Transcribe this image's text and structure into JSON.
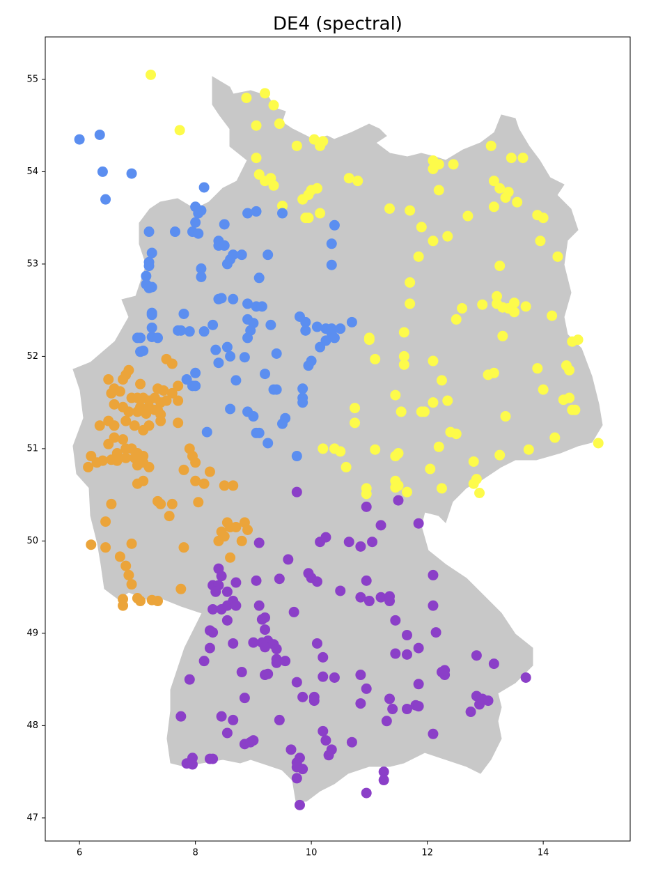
{
  "chart_data": {
    "type": "scatter",
    "title": "DE4 (spectral)",
    "xlim": [
      5.41,
      15.5
    ],
    "ylim": [
      46.75,
      55.46
    ],
    "xticks": [
      6,
      8,
      10,
      12,
      14
    ],
    "yticks": [
      47,
      48,
      49,
      50,
      51,
      52,
      53,
      54,
      55
    ],
    "series": [
      {
        "color": "#fdfb4a",
        "x": [
          7.23,
          7.73,
          8.88,
          9.2,
          9.35,
          9.05,
          9.45,
          9.75,
          10.05,
          10.15,
          10.2,
          9.05,
          9.1,
          9.2,
          9.3,
          9.35,
          9.5,
          9.85,
          9.95,
          10.0,
          10.1,
          9.9,
          9.95,
          10.15,
          10.65,
          10.8,
          11.35,
          11.7,
          11.9,
          12.1,
          12.2,
          12.1,
          12.45,
          12.2,
          12.35,
          12.1,
          12.7,
          13.1,
          13.45,
          13.65,
          13.15,
          13.25,
          13.35,
          13.4,
          13.55,
          13.15,
          13.9,
          14.0,
          13.95,
          14.25,
          11.85,
          13.25,
          11.7,
          11.7,
          12.6,
          12.95,
          13.2,
          13.2,
          13.3,
          13.4,
          13.5,
          13.5,
          13.7,
          12.5,
          14.15,
          13.3,
          11.0,
          11.0,
          11.6,
          11.6,
          11.6,
          11.1,
          12.1,
          12.25,
          11.45,
          11.55,
          11.9,
          11.95,
          12.1,
          12.35,
          12.4,
          12.5,
          13.35,
          13.05,
          13.15,
          13.9,
          14.0,
          14.4,
          14.45,
          14.35,
          14.45,
          14.5,
          14.55,
          14.5,
          14.6,
          14.2,
          14.95,
          13.75,
          13.25,
          12.8,
          12.2,
          12.05,
          12.25,
          12.8,
          12.85,
          12.9,
          11.45,
          11.5,
          11.45,
          11.45,
          11.5,
          11.65,
          11.1,
          10.95,
          10.95,
          10.6,
          10.4,
          10.5,
          10.2,
          10.75,
          10.75
        ],
        "y": [
          55.05,
          54.45,
          54.8,
          54.85,
          54.72,
          54.5,
          54.52,
          54.28,
          54.35,
          54.28,
          54.33,
          54.15,
          53.97,
          53.9,
          53.93,
          53.85,
          53.63,
          53.7,
          53.75,
          53.8,
          53.82,
          53.5,
          53.5,
          53.55,
          53.93,
          53.9,
          53.6,
          53.58,
          53.4,
          54.12,
          54.08,
          54.03,
          54.08,
          53.8,
          53.3,
          53.25,
          53.52,
          54.28,
          54.15,
          54.15,
          53.9,
          53.82,
          53.72,
          53.78,
          53.67,
          53.62,
          53.53,
          53.5,
          53.25,
          53.08,
          53.08,
          52.98,
          52.8,
          52.57,
          52.52,
          52.56,
          52.65,
          52.57,
          52.53,
          52.52,
          52.58,
          52.48,
          52.54,
          52.4,
          52.44,
          52.22,
          52.2,
          52.18,
          52.26,
          52.0,
          51.91,
          51.97,
          51.95,
          51.74,
          51.58,
          51.4,
          51.4,
          51.4,
          51.5,
          51.52,
          51.18,
          51.16,
          51.35,
          51.8,
          51.82,
          51.87,
          51.64,
          51.9,
          51.85,
          51.53,
          51.55,
          51.42,
          51.42,
          52.16,
          52.18,
          51.12,
          51.06,
          50.99,
          50.93,
          50.86,
          51.02,
          50.78,
          50.57,
          50.62,
          50.67,
          50.52,
          50.92,
          50.95,
          50.65,
          50.58,
          50.6,
          50.53,
          50.99,
          50.57,
          50.51,
          50.8,
          51.0,
          50.97,
          51.0,
          51.44,
          51.28
        ]
      },
      {
        "color": "#5b8ef0",
        "x": [
          6.0,
          6.35,
          6.4,
          6.9,
          6.45,
          8.15,
          8.0,
          8.1,
          8.05,
          8.0,
          7.95,
          8.05,
          7.65,
          7.2,
          7.25,
          7.2,
          7.2,
          7.15,
          7.15,
          7.2,
          7.25,
          8.1,
          8.1,
          8.4,
          8.4,
          8.5,
          8.5,
          8.55,
          8.6,
          8.65,
          8.8,
          8.9,
          9.05,
          9.25,
          9.5,
          9.1,
          10.4,
          10.35,
          10.35,
          8.4,
          8.45,
          8.65,
          8.9,
          9.05,
          9.15,
          7.25,
          7.25,
          7.8,
          7.25,
          7.7,
          7.75,
          7.9,
          8.15,
          8.3,
          8.9,
          9.0,
          9.3,
          8.95,
          8.9,
          9.8,
          9.9,
          9.9,
          10.1,
          10.25,
          10.35,
          10.5,
          10.35,
          10.4,
          10.25,
          10.15,
          10.7,
          7.0,
          7.05,
          7.25,
          7.35,
          7.05,
          7.1,
          8.35,
          8.55,
          8.6,
          8.85,
          8.4,
          9.4,
          10.0,
          9.95,
          7.85,
          8.0,
          7.95,
          8.0,
          8.7,
          9.2,
          9.35,
          9.4,
          9.85,
          9.85,
          9.85,
          8.6,
          8.9,
          9.0,
          9.55,
          9.5,
          8.2,
          9.05,
          9.1,
          9.25,
          9.75
        ],
        "y": [
          54.35,
          54.4,
          54.0,
          53.98,
          53.7,
          53.83,
          53.62,
          53.58,
          53.55,
          53.45,
          53.35,
          53.33,
          53.35,
          53.35,
          53.12,
          53.02,
          52.98,
          52.87,
          52.78,
          52.74,
          52.75,
          52.95,
          52.86,
          53.25,
          53.2,
          53.2,
          53.43,
          53.0,
          53.05,
          53.1,
          53.1,
          53.55,
          53.57,
          53.1,
          53.55,
          52.85,
          53.42,
          53.22,
          52.99,
          52.62,
          52.63,
          52.62,
          52.57,
          52.54,
          52.54,
          52.47,
          52.45,
          52.46,
          52.31,
          52.28,
          52.28,
          52.27,
          52.27,
          52.34,
          52.4,
          52.36,
          52.34,
          52.28,
          52.2,
          52.43,
          52.37,
          52.28,
          52.32,
          52.3,
          52.3,
          52.3,
          52.25,
          52.2,
          52.17,
          52.1,
          52.37,
          52.2,
          52.2,
          52.21,
          52.2,
          52.05,
          52.06,
          52.07,
          52.1,
          52.0,
          51.99,
          51.93,
          52.03,
          51.95,
          51.9,
          51.75,
          51.82,
          51.68,
          51.68,
          51.74,
          51.81,
          51.64,
          51.64,
          51.65,
          51.55,
          51.5,
          51.43,
          51.4,
          51.35,
          51.33,
          51.27,
          51.18,
          51.17,
          51.17,
          51.06,
          50.92
        ]
      },
      {
        "color": "#eba43a",
        "x": [
          7.5,
          7.6,
          6.5,
          6.85,
          6.8,
          6.75,
          6.6,
          6.7,
          6.55,
          7.05,
          7.35,
          7.45,
          7.7,
          7.6,
          6.9,
          7.0,
          7.1,
          7.2,
          7.3,
          7.4,
          7.5,
          7.05,
          7.2,
          7.3,
          6.6,
          6.75,
          6.85,
          7.0,
          7.15,
          7.35,
          7.4,
          7.7,
          7.7,
          7.2,
          7.4,
          6.5,
          6.6,
          6.35,
          6.8,
          6.95,
          7.1,
          6.6,
          6.75,
          6.5,
          6.8,
          6.9,
          7.0,
          6.65,
          6.8,
          6.95,
          7.1,
          6.55,
          6.65,
          6.4,
          6.3,
          6.2,
          6.15,
          7.0,
          7.1,
          7.2,
          7.0,
          7.1,
          7.9,
          7.95,
          8.0,
          7.8,
          8.25,
          8.0,
          8.15,
          8.5,
          8.65,
          8.05,
          7.35,
          7.4,
          7.6,
          7.55,
          6.55,
          6.45,
          8.55,
          8.6,
          8.7,
          8.85,
          8.9,
          8.45,
          8.5,
          8.4,
          8.8,
          8.6,
          6.2,
          6.45,
          6.9,
          7.8,
          6.7,
          6.8,
          6.85,
          6.9,
          7.75,
          6.75,
          6.75,
          7.0,
          7.05,
          7.25,
          7.35
        ],
        "y": [
          51.97,
          51.92,
          51.75,
          51.85,
          51.8,
          51.75,
          51.65,
          51.62,
          51.6,
          51.7,
          51.65,
          51.63,
          51.68,
          51.6,
          51.55,
          51.55,
          51.55,
          51.52,
          51.55,
          51.5,
          51.52,
          51.45,
          51.45,
          51.42,
          51.48,
          51.45,
          51.4,
          51.4,
          51.38,
          51.42,
          51.37,
          51.52,
          51.28,
          51.25,
          51.3,
          51.3,
          51.25,
          51.25,
          51.3,
          51.25,
          51.2,
          51.12,
          51.1,
          51.05,
          51.0,
          51.0,
          50.95,
          50.95,
          50.9,
          50.9,
          50.92,
          50.88,
          50.87,
          50.87,
          50.85,
          50.92,
          50.8,
          50.82,
          50.85,
          50.8,
          50.62,
          50.65,
          51.0,
          50.92,
          50.85,
          50.77,
          50.75,
          50.65,
          50.62,
          50.6,
          50.6,
          50.42,
          50.43,
          50.4,
          50.4,
          50.27,
          50.4,
          50.21,
          50.2,
          50.15,
          50.15,
          50.2,
          50.12,
          50.1,
          50.05,
          50.0,
          50.0,
          49.82,
          49.96,
          49.93,
          49.97,
          49.93,
          49.83,
          49.73,
          49.63,
          49.53,
          49.48,
          49.37,
          49.3,
          49.38,
          49.35,
          49.36,
          49.35
        ]
      },
      {
        "color": "#8b3fc8",
        "x": [
          9.75,
          11.5,
          10.95,
          11.2,
          11.85,
          9.1,
          10.15,
          10.25,
          10.65,
          10.85,
          11.05,
          9.6,
          8.4,
          8.45,
          9.95,
          10.0,
          10.1,
          10.95,
          12.1,
          8.3,
          8.4,
          8.55,
          8.35,
          8.7,
          9.05,
          9.45,
          10.5,
          10.85,
          11.0,
          11.2,
          11.35,
          11.35,
          8.3,
          8.45,
          8.55,
          8.65,
          8.7,
          9.1,
          9.7,
          12.1,
          8.55,
          9.15,
          9.2,
          11.45,
          8.25,
          8.3,
          9.2,
          12.15,
          8.65,
          9.0,
          9.15,
          9.25,
          9.35,
          11.65,
          8.25,
          9.2,
          9.4,
          10.1,
          11.45,
          11.65,
          11.85,
          12.85,
          8.15,
          9.4,
          9.4,
          9.55,
          10.2,
          13.15,
          7.9,
          8.8,
          9.2,
          9.25,
          9.75,
          10.2,
          10.4,
          10.85,
          10.95,
          11.85,
          12.25,
          12.3,
          12.3,
          13.7,
          8.85,
          9.85,
          10.05,
          10.05,
          10.85,
          11.35,
          11.8,
          11.85,
          11.65,
          11.4,
          12.85,
          12.95,
          13.05,
          12.9,
          12.75,
          7.75,
          8.45,
          8.65,
          9.45,
          11.3,
          8.55,
          10.2,
          10.25,
          10.7,
          12.1,
          8.85,
          8.95,
          9.0,
          9.65,
          10.35,
          10.3,
          7.95,
          8.25,
          8.3,
          7.85,
          7.95,
          9.8,
          9.75,
          9.85,
          9.75,
          11.25,
          9.75,
          11.25,
          10.95,
          9.8
        ],
        "y": [
          50.53,
          50.44,
          50.37,
          50.17,
          50.19,
          49.98,
          49.99,
          50.04,
          49.99,
          49.94,
          49.99,
          49.8,
          49.7,
          49.62,
          49.65,
          49.6,
          49.56,
          49.57,
          49.63,
          49.52,
          49.52,
          49.45,
          49.45,
          49.55,
          49.57,
          49.59,
          49.46,
          49.39,
          49.35,
          49.39,
          49.4,
          49.35,
          49.26,
          49.26,
          49.3,
          49.35,
          49.3,
          49.3,
          49.23,
          49.3,
          49.14,
          49.15,
          49.17,
          49.14,
          49.03,
          49.01,
          49.04,
          49.01,
          48.89,
          48.9,
          48.9,
          48.92,
          48.88,
          48.98,
          48.84,
          48.85,
          48.83,
          48.89,
          48.78,
          48.77,
          48.84,
          48.76,
          48.7,
          48.72,
          48.68,
          48.7,
          48.74,
          48.67,
          48.5,
          48.58,
          48.55,
          48.56,
          48.47,
          48.53,
          48.52,
          48.55,
          48.4,
          48.45,
          48.58,
          48.55,
          48.6,
          48.52,
          48.3,
          48.31,
          48.31,
          48.27,
          48.24,
          48.29,
          48.22,
          48.21,
          48.18,
          48.18,
          48.32,
          48.29,
          48.27,
          48.23,
          48.15,
          48.1,
          48.1,
          48.06,
          48.06,
          48.05,
          47.92,
          47.94,
          47.84,
          47.82,
          47.91,
          47.8,
          47.82,
          47.84,
          47.74,
          47.74,
          47.68,
          47.65,
          47.64,
          47.64,
          47.59,
          47.58,
          47.65,
          47.6,
          47.53,
          47.55,
          47.5,
          47.43,
          47.41,
          47.27,
          47.14
        ]
      }
    ]
  }
}
